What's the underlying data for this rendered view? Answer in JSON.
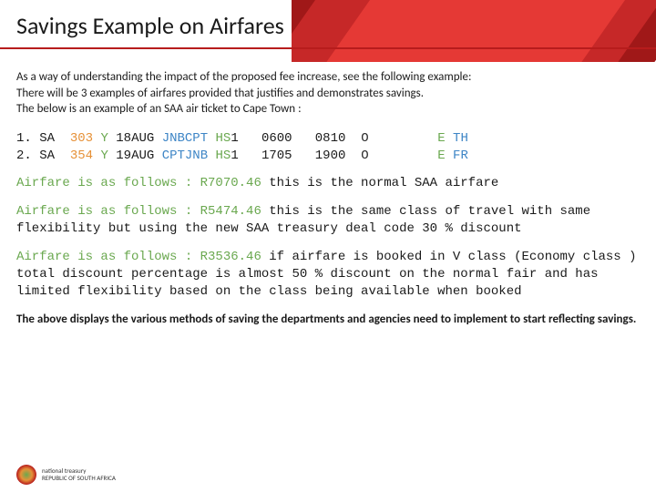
{
  "header": {
    "title": "Savings Example on Airfares",
    "stripe_colors": [
      "#a01818",
      "#c62828",
      "#e53935"
    ],
    "underline_color": "#b71c1c"
  },
  "intro": {
    "line1": "As a way of understanding the impact of the proposed fee increase, see the following example:",
    "line2": "There will be 3 examples of airfares provided that justifies and demonstrates savings.",
    "line3": "The below is an example of an SAA air ticket to Cape Town :"
  },
  "flights": {
    "row1": {
      "num": "1. SA",
      "flight": "303",
      "cls": "Y",
      "date": "18AUG",
      "route": "JNBCPT",
      "hs": "HS",
      "hsn": "1",
      "dep": "0600",
      "arr": "0810",
      "o": "O",
      "e": "E",
      "day": "TH"
    },
    "row2": {
      "num": "2. SA",
      "flight": "354",
      "cls": "Y",
      "date": "19AUG",
      "route": "CPTJNB",
      "hs": "HS",
      "hsn": "1",
      "dep": "1705",
      "arr": "1900",
      "o": "O",
      "e": "E",
      "day": "FR"
    }
  },
  "fares": {
    "f1": {
      "lead": "Airfare is as follows : R7070.46",
      "rest": " this is the normal SAA airfare"
    },
    "f2": {
      "lead": "Airfare is as follows : R5474.46",
      "rest": " this is the same class of travel with same flexibility but using the new SAA treasury deal code 30 % discount"
    },
    "f3": {
      "lead": "Airfare is as follows : R3536.46 ",
      "rest": " if airfare is booked in V class (Economy class ) total discount percentage is almost 50 % discount on the normal fair and has limited flexibility based on the class being available when booked"
    }
  },
  "outro": "The above displays the various methods of saving the departments and agencies need to implement to start reflecting savings.",
  "footer": {
    "line1": "national treasury",
    "line2": "REPUBLIC OF SOUTH AFRICA"
  },
  "colors": {
    "black": "#1a1a1a",
    "orange": "#e69138",
    "green": "#6aa84f",
    "blue": "#3d85c6",
    "dark": "#2b2b2b"
  }
}
